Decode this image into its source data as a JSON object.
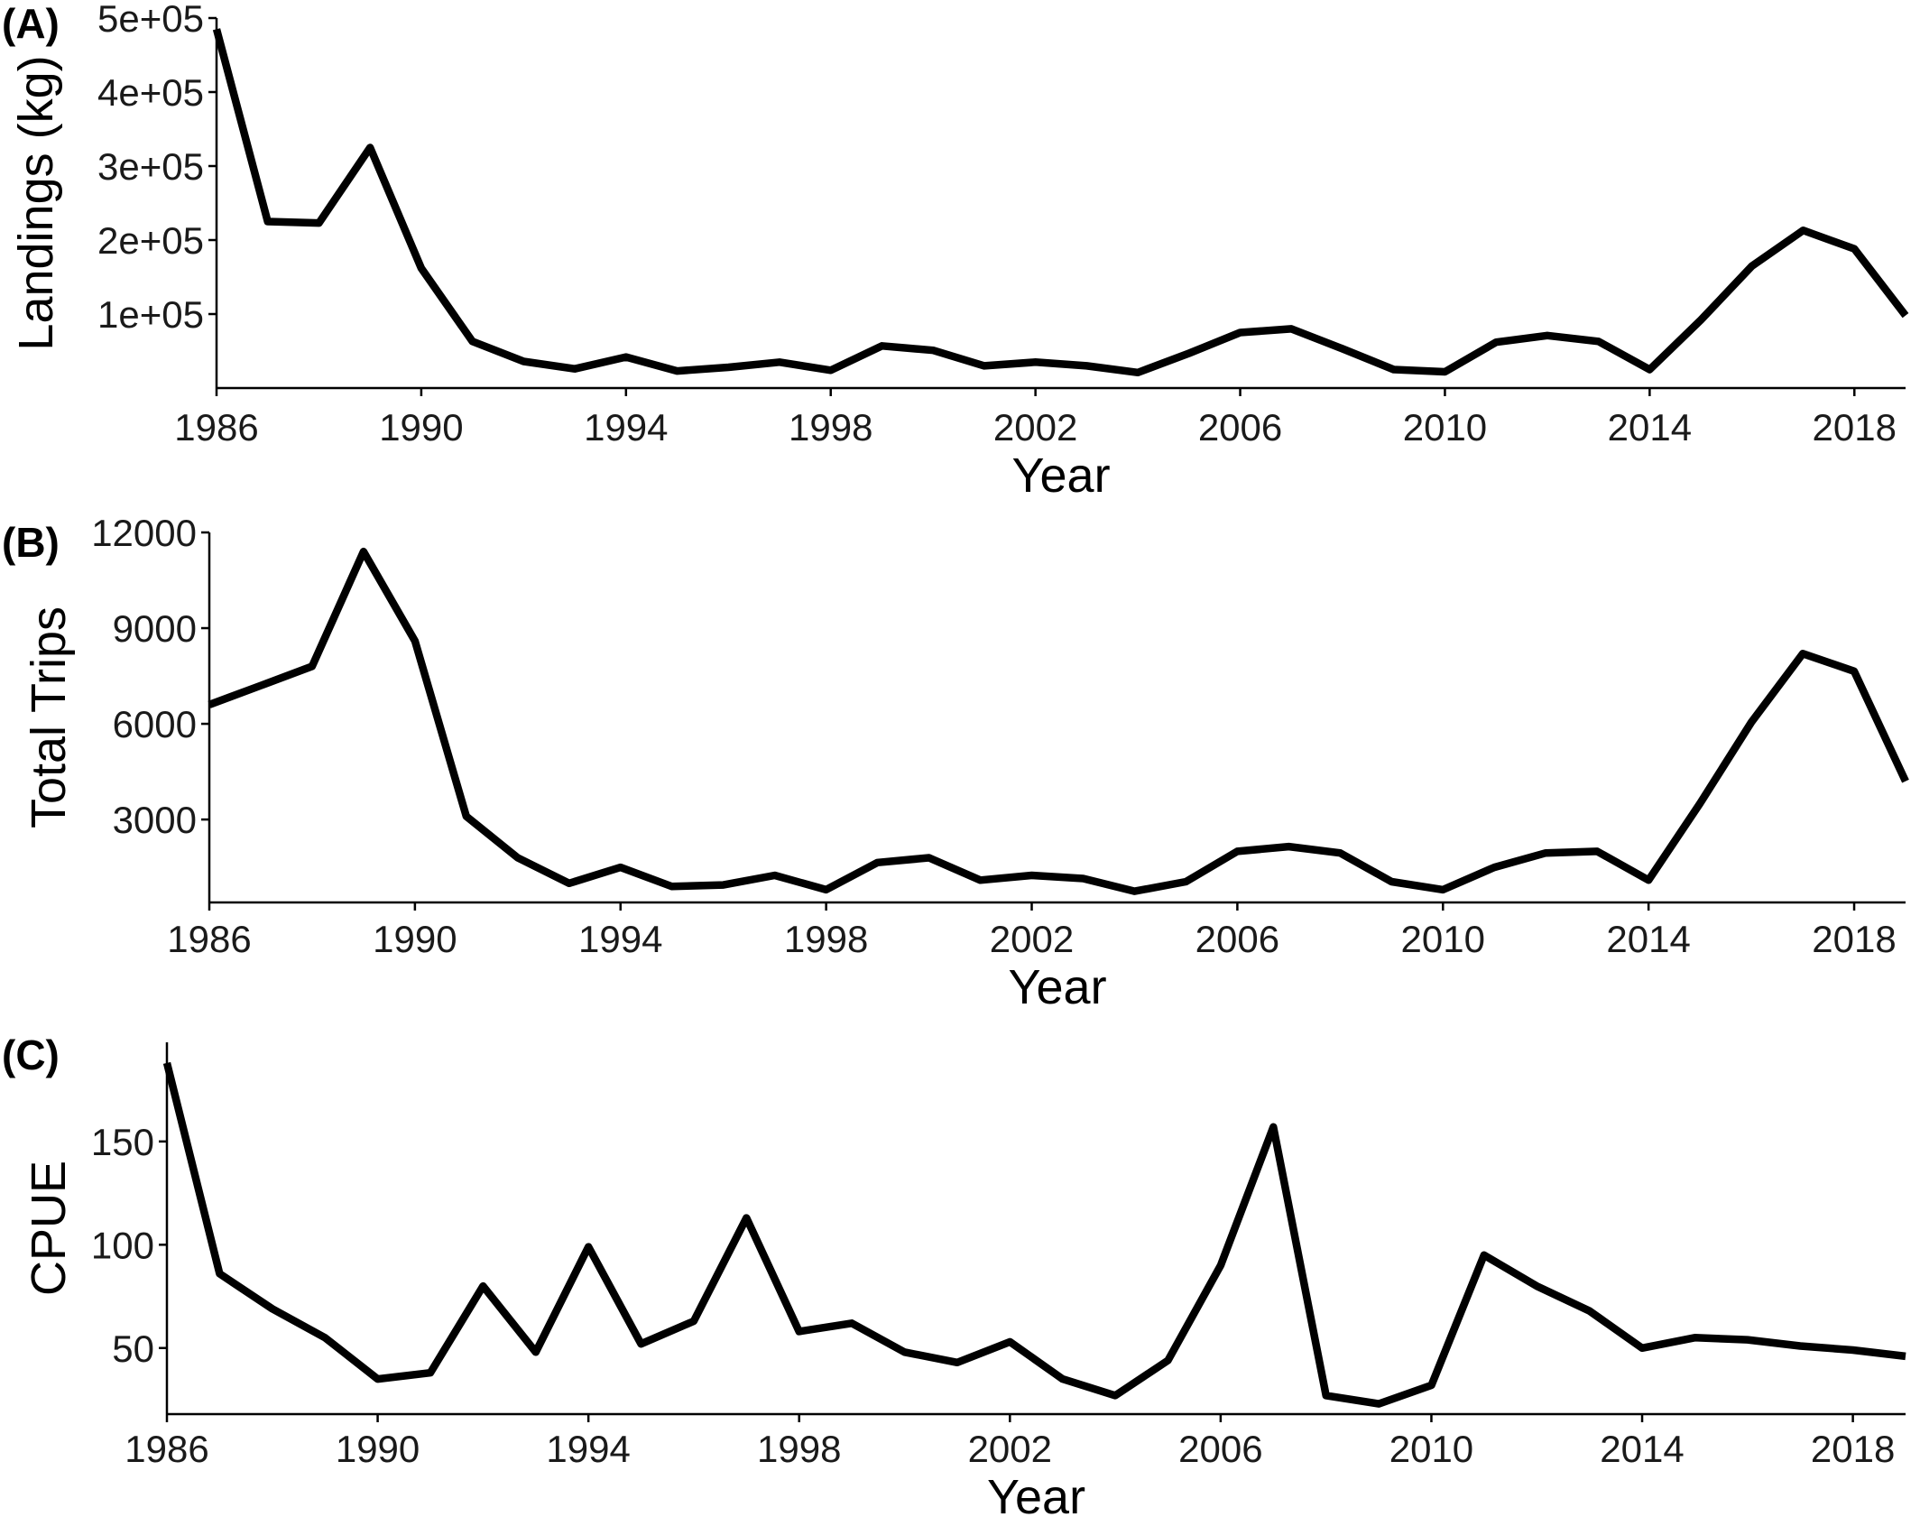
{
  "colors": {
    "line": "#000000"
  },
  "chart_data": [
    {
      "panel_label": "(A)",
      "type": "line",
      "xlabel": "Year",
      "ylabel": "Landings (kg)",
      "xlim": [
        1986,
        2019
      ],
      "ylim": [
        0,
        500000
      ],
      "x_ticks": [
        1986,
        1990,
        1994,
        1998,
        2002,
        2006,
        2010,
        2014,
        2018
      ],
      "y_ticks": [
        100000,
        200000,
        300000,
        400000,
        500000
      ],
      "y_tick_labels": [
        "1e+05",
        "2e+05",
        "3e+05",
        "4e+05",
        "5e+05"
      ],
      "grid": false,
      "x": [
        1986,
        1987,
        1988,
        1989,
        1990,
        1991,
        1992,
        1993,
        1994,
        1995,
        1996,
        1997,
        1998,
        1999,
        2000,
        2001,
        2002,
        2003,
        2004,
        2005,
        2006,
        2007,
        2008,
        2009,
        2010,
        2011,
        2012,
        2013,
        2014,
        2015,
        2016,
        2017,
        2018,
        2019
      ],
      "y": [
        485000,
        225000,
        223000,
        325000,
        162000,
        63000,
        36000,
        26000,
        42000,
        23000,
        28000,
        35000,
        24000,
        57000,
        51000,
        30000,
        35000,
        30000,
        21000,
        47000,
        75000,
        80000,
        53000,
        25000,
        22000,
        62000,
        71000,
        63000,
        25000,
        92000,
        165000,
        213000,
        188000,
        98000
      ]
    },
    {
      "panel_label": "(B)",
      "type": "line",
      "xlabel": "Year",
      "ylabel": "Total Trips",
      "xlim": [
        1986,
        2019
      ],
      "ylim": [
        400,
        12000
      ],
      "x_ticks": [
        1986,
        1990,
        1994,
        1998,
        2002,
        2006,
        2010,
        2014,
        2018
      ],
      "y_ticks": [
        3000,
        6000,
        9000,
        12000
      ],
      "y_tick_labels": [
        "3000",
        "6000",
        "9000",
        "12000"
      ],
      "grid": false,
      "x": [
        1986,
        1987,
        1988,
        1989,
        1990,
        1991,
        1992,
        1993,
        1994,
        1995,
        1996,
        1997,
        1998,
        1999,
        2000,
        2001,
        2002,
        2003,
        2004,
        2005,
        2006,
        2007,
        2008,
        2009,
        2010,
        2011,
        2012,
        2013,
        2014,
        2015,
        2016,
        2017,
        2018,
        2019
      ],
      "y": [
        6600,
        7200,
        7800,
        11400,
        8600,
        3100,
        1800,
        1000,
        1500,
        900,
        950,
        1250,
        800,
        1650,
        1800,
        1100,
        1250,
        1150,
        750,
        1050,
        2000,
        2150,
        1950,
        1050,
        800,
        1500,
        1950,
        2000,
        1100,
        3500,
        6050,
        8200,
        7650,
        4200
      ]
    },
    {
      "panel_label": "(C)",
      "type": "line",
      "xlabel": "Year",
      "ylabel": "CPUE",
      "xlim": [
        1986,
        2019
      ],
      "ylim": [
        18,
        198
      ],
      "x_ticks": [
        1986,
        1990,
        1994,
        1998,
        2002,
        2006,
        2010,
        2014,
        2018
      ],
      "y_ticks": [
        50,
        100,
        150
      ],
      "y_tick_labels": [
        "50",
        "100",
        "150"
      ],
      "grid": false,
      "x": [
        1986,
        1987,
        1988,
        1989,
        1990,
        1991,
        1992,
        1993,
        1994,
        1995,
        1996,
        1997,
        1998,
        1999,
        2000,
        2001,
        2002,
        2003,
        2004,
        2005,
        2006,
        2007,
        2008,
        2009,
        2010,
        2011,
        2012,
        2013,
        2014,
        2015,
        2016,
        2017,
        2018,
        2019
      ],
      "y": [
        188,
        86,
        69,
        55,
        35,
        38,
        80,
        48,
        99,
        52,
        63,
        113,
        58,
        62,
        48,
        43,
        53,
        35,
        27,
        44,
        90,
        157,
        27,
        23,
        32,
        95,
        80,
        68,
        50,
        55,
        54,
        51,
        49,
        46
      ]
    }
  ]
}
